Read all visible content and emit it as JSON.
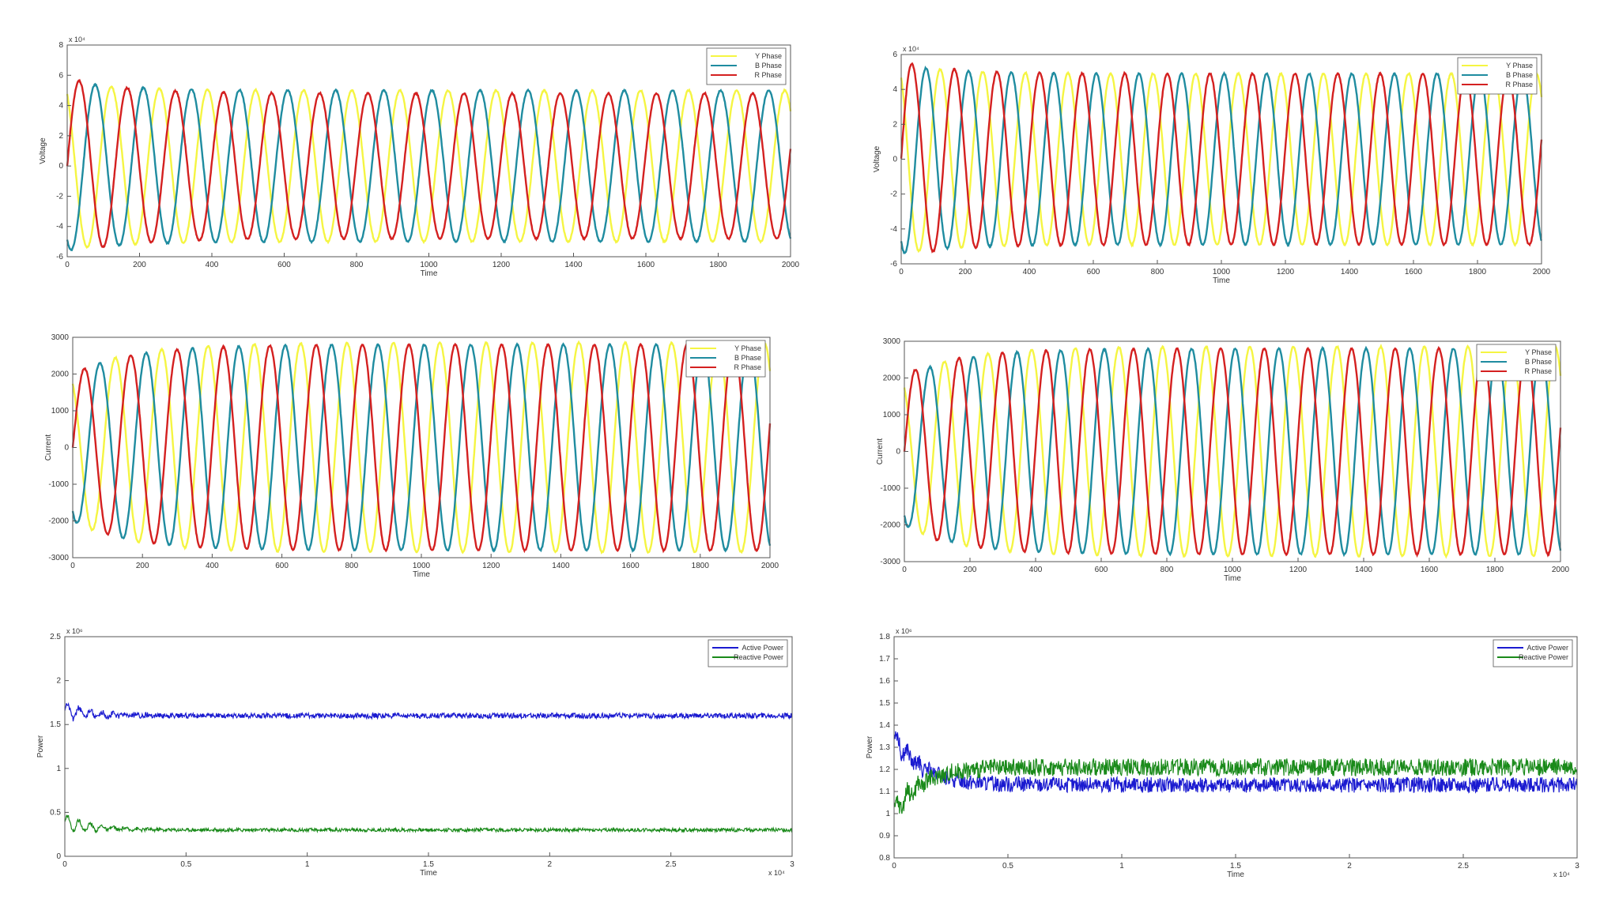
{
  "chart_data": [
    {
      "id": "voltage-left",
      "type": "line",
      "ylabel": "Voltage",
      "xlabel": "Time",
      "xlim": [
        0,
        2000
      ],
      "ylim": [
        -6,
        8
      ],
      "xticks": [
        "0",
        "200",
        "400",
        "600",
        "800",
        "1000",
        "1200",
        "1400",
        "1600",
        "1800",
        "2000"
      ],
      "yticks": [
        "-6",
        "-4",
        "-2",
        "0",
        "2",
        "4",
        "6",
        "8"
      ],
      "exponent": "x 10⁴",
      "legend_position": "top-right",
      "series": [
        {
          "name": "Y Phase",
          "color": "#f5f542",
          "amplitude": 5.0,
          "period": 133,
          "phase_deg": 120,
          "start_amp": 5.5
        },
        {
          "name": "B Phase",
          "color": "#1f8ca0",
          "amplitude": 5.0,
          "period": 133,
          "phase_deg": 240,
          "start_amp": 5.6
        },
        {
          "name": "R Phase",
          "color": "#d42020",
          "amplitude": 4.8,
          "period": 133,
          "phase_deg": 0,
          "start_amp": 5.8
        }
      ]
    },
    {
      "id": "voltage-right",
      "type": "line",
      "ylabel": "Voltage",
      "xlabel": "Time",
      "xlim": [
        0,
        2000
      ],
      "ylim": [
        -6,
        6
      ],
      "xticks": [
        "0",
        "200",
        "400",
        "600",
        "800",
        "1000",
        "1200",
        "1400",
        "1600",
        "1800",
        "2000"
      ],
      "yticks": [
        "-6",
        "-4",
        "-2",
        "0",
        "2",
        "4",
        "6"
      ],
      "exponent": "x 10⁴",
      "legend_position": "top-right",
      "series": [
        {
          "name": "Y Phase",
          "color": "#f5f542",
          "amplitude": 4.9,
          "period": 133,
          "phase_deg": 120,
          "start_amp": 5.4
        },
        {
          "name": "B Phase",
          "color": "#1f8ca0",
          "amplitude": 4.9,
          "period": 133,
          "phase_deg": 240,
          "start_amp": 5.4
        },
        {
          "name": "R Phase",
          "color": "#d42020",
          "amplitude": 4.9,
          "period": 133,
          "phase_deg": 0,
          "start_amp": 5.6
        }
      ]
    },
    {
      "id": "current-left",
      "type": "line",
      "ylabel": "Current",
      "xlabel": "Time",
      "xlim": [
        0,
        2000
      ],
      "ylim": [
        -3000,
        3000
      ],
      "xticks": [
        "0",
        "200",
        "400",
        "600",
        "800",
        "1000",
        "1200",
        "1400",
        "1600",
        "1800",
        "2000"
      ],
      "yticks": [
        "-3000",
        "-2000",
        "-1000",
        "0",
        "1000",
        "2000",
        "3000"
      ],
      "exponent": "",
      "legend_position": "top-right",
      "series": [
        {
          "name": "Y Phase",
          "color": "#f5f542",
          "amplitude": 2850,
          "period": 133,
          "phase_deg": 120,
          "start_amp": 2000
        },
        {
          "name": "B Phase",
          "color": "#1f8ca0",
          "amplitude": 2800,
          "period": 133,
          "phase_deg": 240,
          "start_amp": 2000
        },
        {
          "name": "R Phase",
          "color": "#d42020",
          "amplitude": 2800,
          "period": 133,
          "phase_deg": 0,
          "start_amp": 2000
        }
      ]
    },
    {
      "id": "current-right",
      "type": "line",
      "ylabel": "Current",
      "xlabel": "Time",
      "xlim": [
        0,
        2000
      ],
      "ylim": [
        -3000,
        3000
      ],
      "xticks": [
        "0",
        "200",
        "400",
        "600",
        "800",
        "1000",
        "1200",
        "1400",
        "1600",
        "1800",
        "2000"
      ],
      "yticks": [
        "-3000",
        "-2000",
        "-1000",
        "0",
        "1000",
        "2000",
        "3000"
      ],
      "exponent": "",
      "legend_position": "top-right",
      "series": [
        {
          "name": "Y Phase",
          "color": "#f5f542",
          "amplitude": 2850,
          "period": 133,
          "phase_deg": 120,
          "start_amp": 2000
        },
        {
          "name": "B Phase",
          "color": "#1f8ca0",
          "amplitude": 2800,
          "period": 133,
          "phase_deg": 240,
          "start_amp": 2000
        },
        {
          "name": "R Phase",
          "color": "#d42020",
          "amplitude": 2800,
          "period": 133,
          "phase_deg": 0,
          "start_amp": 2100
        }
      ]
    },
    {
      "id": "power-left",
      "type": "line",
      "ylabel": "Power",
      "xlabel": "Time",
      "xlim": [
        0,
        3
      ],
      "ylim": [
        0,
        2.5
      ],
      "xticks": [
        "0",
        "0.5",
        "1",
        "1.5",
        "2",
        "2.5",
        "3"
      ],
      "yticks": [
        "0",
        "0.5",
        "1",
        "1.5",
        "2",
        "2.5"
      ],
      "exponent": "x 10⁶",
      "xexponent": "x 10⁴",
      "legend_position": "top-right",
      "series": [
        {
          "name": "Active Power",
          "color": "#1a1ad0",
          "steady": 1.6,
          "ripple": 0.03,
          "initial": 1.65
        },
        {
          "name": "Reactive Power",
          "color": "#1a8a1a",
          "steady": 0.3,
          "ripple": 0.02,
          "initial": 0.38
        }
      ]
    },
    {
      "id": "power-right",
      "type": "line",
      "ylabel": "Power",
      "xlabel": "Time",
      "xlim": [
        0,
        3
      ],
      "ylim": [
        0.8,
        1.8
      ],
      "xticks": [
        "0",
        "0.5",
        "1",
        "1.5",
        "2",
        "2.5",
        "3"
      ],
      "yticks": [
        "0.8",
        "0.9",
        "1",
        "1.1",
        "1.2",
        "1.3",
        "1.4",
        "1.5",
        "1.6",
        "1.7",
        "1.8"
      ],
      "exponent": "x 10⁶",
      "xexponent": "x 10⁴",
      "legend_position": "top-right",
      "series": [
        {
          "name": "Active Power",
          "color": "#1a1ad0",
          "steady": 1.13,
          "ripple": 0.035,
          "initial": 1.35
        },
        {
          "name": "Reactive Power",
          "color": "#1a8a1a",
          "steady": 1.21,
          "ripple": 0.04,
          "initial": 1.0
        }
      ]
    }
  ]
}
